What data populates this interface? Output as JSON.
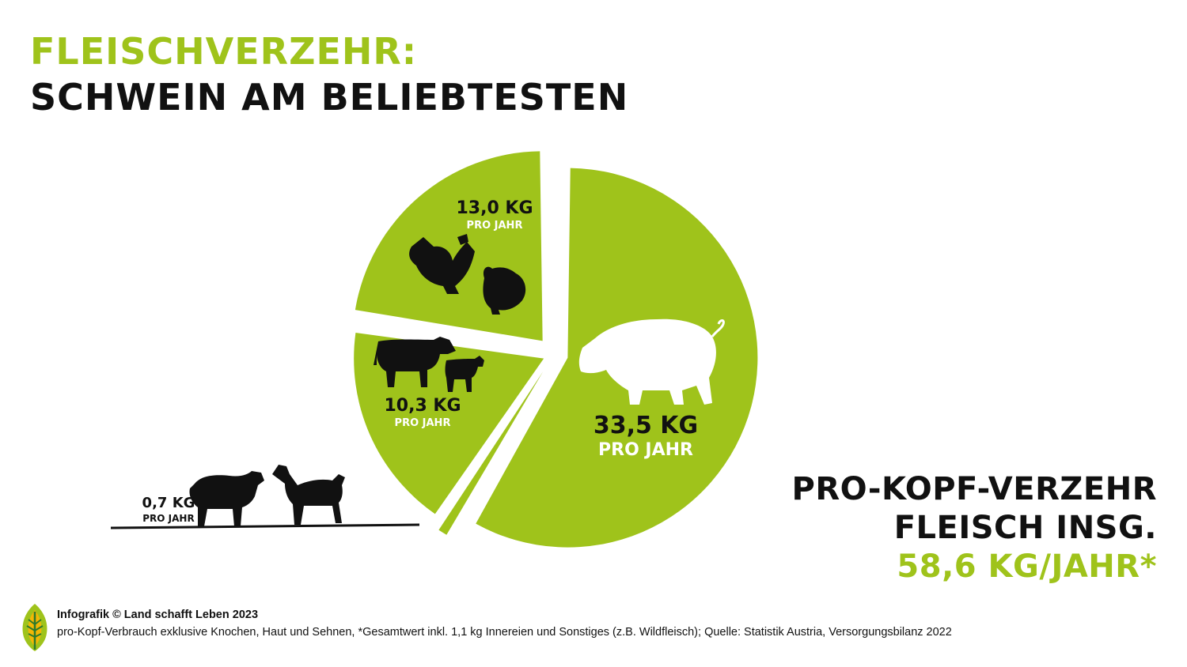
{
  "colors": {
    "accent": "#9fc31b",
    "text": "#111111",
    "background": "#ffffff"
  },
  "title": {
    "line1": "FLEISCHVERZEHR:",
    "line2": "SCHWEIN AM BELIEBTESTEN"
  },
  "chart_data": {
    "type": "pie",
    "unit": "KG PRO JAHR",
    "slices": [
      {
        "name": "Schwein",
        "value": 33.5,
        "value_label": "33,5 KG",
        "sub_label": "PRO JAHR",
        "icon": "pig-icon"
      },
      {
        "name": "Schaf & Ziege",
        "value": 0.7,
        "value_label": "0,7 KG",
        "sub_label": "PRO JAHR",
        "icon": "sheep-goat-icon"
      },
      {
        "name": "Rind & Kalb",
        "value": 10.3,
        "value_label": "10,3 KG",
        "sub_label": "PRO JAHR",
        "icon": "cow-calf-icon"
      },
      {
        "name": "Geflügel",
        "value": 13.0,
        "value_label": "13,0 KG",
        "sub_label": "PRO JAHR",
        "icon": "chicken-turkey-icon"
      }
    ]
  },
  "total": {
    "line1": "PRO-KOPF-VERZEHR",
    "line2": "FLEISCH INSG.",
    "line3": "58,6 KG/JAHR*"
  },
  "footer": {
    "credit": "Infografik © Land schafft Leben 2023",
    "note": "pro-Kopf-Verbrauch exklusive Knochen, Haut und Sehnen, *Gesamtwert inkl. 1,1 kg Innereien und Sonstiges (z.B. Wildfleisch); Quelle: Statistik Austria, Versorgungsbilanz 2022",
    "logo_icon": "leaf-logo-icon"
  }
}
